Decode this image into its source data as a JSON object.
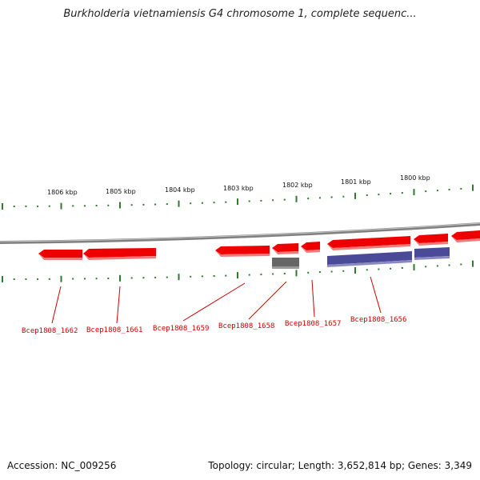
{
  "title": "Burkholderia vietnamiensis G4 chromosome 1, complete sequenc...",
  "footer": {
    "accession": "Accession: NC_009256",
    "summary": "Topology: circular; Length: 3,652,814 bp; Genes: 3,349"
  },
  "scale_labels": [
    "1806 kbp",
    "1805 kbp",
    "1804 kbp",
    "1803 kbp",
    "1802 kbp",
    "1801 kbp",
    "1800 kbp"
  ],
  "gene_labels": [
    "Bcep1808_1662",
    "Bcep1808_1661",
    "Bcep1808_1659",
    "Bcep1808_1658",
    "Bcep1808_1657",
    "Bcep1808_1656"
  ],
  "colors": {
    "forward_gene": "#ee0000",
    "reverse_gene": "#4a4a99",
    "rna_gene": "#666666",
    "backbone": "#808080",
    "tick": "#2f7a2f",
    "gene_label": "#cc0000"
  }
}
